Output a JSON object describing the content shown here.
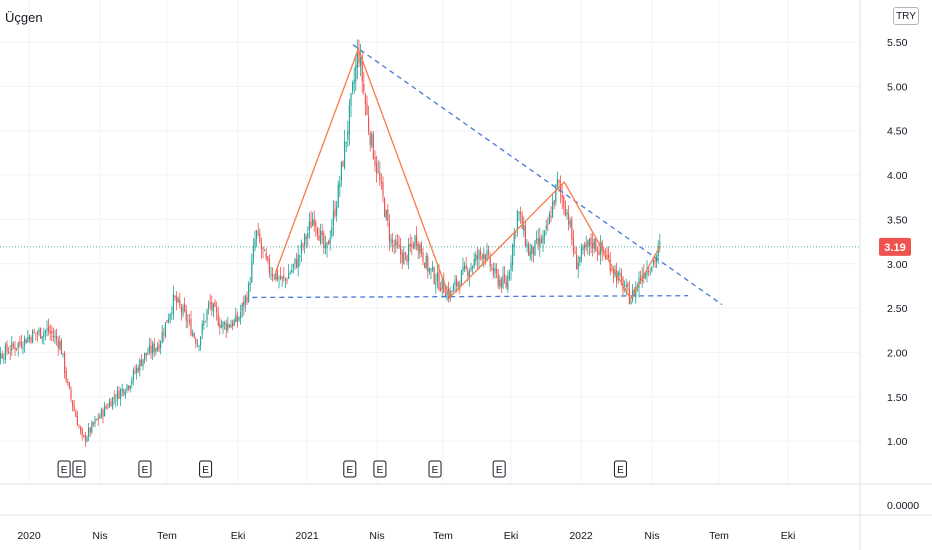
{
  "title": "Üçgen",
  "currency": "TRY",
  "colors": {
    "up": "#26a69a",
    "down": "#ef5350",
    "pattern": "#f57c48",
    "trend": "#4a78d6",
    "price_line": "#26a69a",
    "price_badge": "#ef5350",
    "grid": "#e0e3eb"
  },
  "chart_data": {
    "type": "candlestick",
    "y_ticks": [
      "5.50",
      "5.00",
      "4.50",
      "4.00",
      "3.50",
      "3.00",
      "2.50",
      "2.00",
      "1.50",
      "1.00"
    ],
    "x_ticks": [
      "2020",
      "Nis",
      "Tem",
      "Eki",
      "2021",
      "Nis",
      "Tem",
      "Eki",
      "2022",
      "Nis",
      "Tem",
      "Eki"
    ],
    "ylim": [
      0.75,
      5.65
    ],
    "current_price": "3.19",
    "current_price_value": 3.19,
    "indicator_pane_value": "0.0000",
    "earnings_markers": [
      "E",
      "E",
      "E",
      "E",
      "E",
      "E",
      "E",
      "E",
      "E"
    ],
    "earnings_dates": [
      "2020-02-15",
      "2020-03-05",
      "2020-06-01",
      "2020-08-20",
      "2021-02-25",
      "2021-04-05",
      "2021-06-20",
      "2021-09-15",
      "2022-02-20"
    ],
    "price_path": [
      [
        "2019-11-01",
        1.82
      ],
      [
        "2019-11-20",
        1.95
      ],
      [
        "2019-12-10",
        2.05
      ],
      [
        "2020-01-05",
        2.2
      ],
      [
        "2020-01-25",
        2.25
      ],
      [
        "2020-02-10",
        2.1
      ],
      [
        "2020-02-20",
        1.6
      ],
      [
        "2020-03-10",
        1.0
      ],
      [
        "2020-03-25",
        1.2
      ],
      [
        "2020-04-15",
        1.45
      ],
      [
        "2020-05-10",
        1.65
      ],
      [
        "2020-05-30",
        1.95
      ],
      [
        "2020-06-20",
        2.1
      ],
      [
        "2020-07-10",
        2.6
      ],
      [
        "2020-07-25",
        2.4
      ],
      [
        "2020-08-10",
        2.1
      ],
      [
        "2020-08-25",
        2.55
      ],
      [
        "2020-09-10",
        2.3
      ],
      [
        "2020-09-30",
        2.35
      ],
      [
        "2020-10-15",
        2.7
      ],
      [
        "2020-10-25",
        3.35
      ],
      [
        "2020-11-10",
        2.95
      ],
      [
        "2020-12-01",
        2.8
      ],
      [
        "2020-12-20",
        3.05
      ],
      [
        "2021-01-10",
        3.55
      ],
      [
        "2021-01-25",
        3.1
      ],
      [
        "2021-02-10",
        3.8
      ],
      [
        "2021-02-25",
        4.7
      ],
      [
        "2021-03-08",
        5.42
      ],
      [
        "2021-03-20",
        4.6
      ],
      [
        "2021-04-05",
        3.9
      ],
      [
        "2021-04-20",
        3.25
      ],
      [
        "2021-05-10",
        3.05
      ],
      [
        "2021-05-25",
        3.3
      ],
      [
        "2021-06-10",
        2.95
      ],
      [
        "2021-06-25",
        2.8
      ],
      [
        "2021-07-10",
        2.65
      ],
      [
        "2021-07-25",
        2.85
      ],
      [
        "2021-08-10",
        3.0
      ],
      [
        "2021-08-25",
        3.15
      ],
      [
        "2021-09-10",
        2.85
      ],
      [
        "2021-09-25",
        2.75
      ],
      [
        "2021-10-10",
        3.6
      ],
      [
        "2021-10-25",
        3.1
      ],
      [
        "2021-11-15",
        3.3
      ],
      [
        "2021-12-01",
        3.9
      ],
      [
        "2021-12-15",
        3.55
      ],
      [
        "2021-12-25",
        3.0
      ],
      [
        "2022-01-15",
        3.25
      ],
      [
        "2022-02-01",
        3.1
      ],
      [
        "2022-02-20",
        2.8
      ],
      [
        "2022-03-05",
        2.6
      ],
      [
        "2022-03-20",
        2.9
      ],
      [
        "2022-04-05",
        3.05
      ],
      [
        "2022-04-12",
        3.19
      ]
    ],
    "pattern_zigzag": [
      [
        "2020-11-20",
        2.9
      ],
      [
        "2021-03-08",
        5.42
      ],
      [
        "2021-07-10",
        2.62
      ],
      [
        "2021-12-10",
        3.92
      ],
      [
        "2022-03-05",
        2.6
      ],
      [
        "2022-04-12",
        3.2
      ]
    ],
    "upper_trendline": [
      [
        "2021-03-01",
        5.47
      ],
      [
        "2022-07-05",
        2.54
      ]
    ],
    "lower_trendline": [
      [
        "2020-10-20",
        2.62
      ],
      [
        "2022-05-20",
        2.64
      ]
    ]
  }
}
